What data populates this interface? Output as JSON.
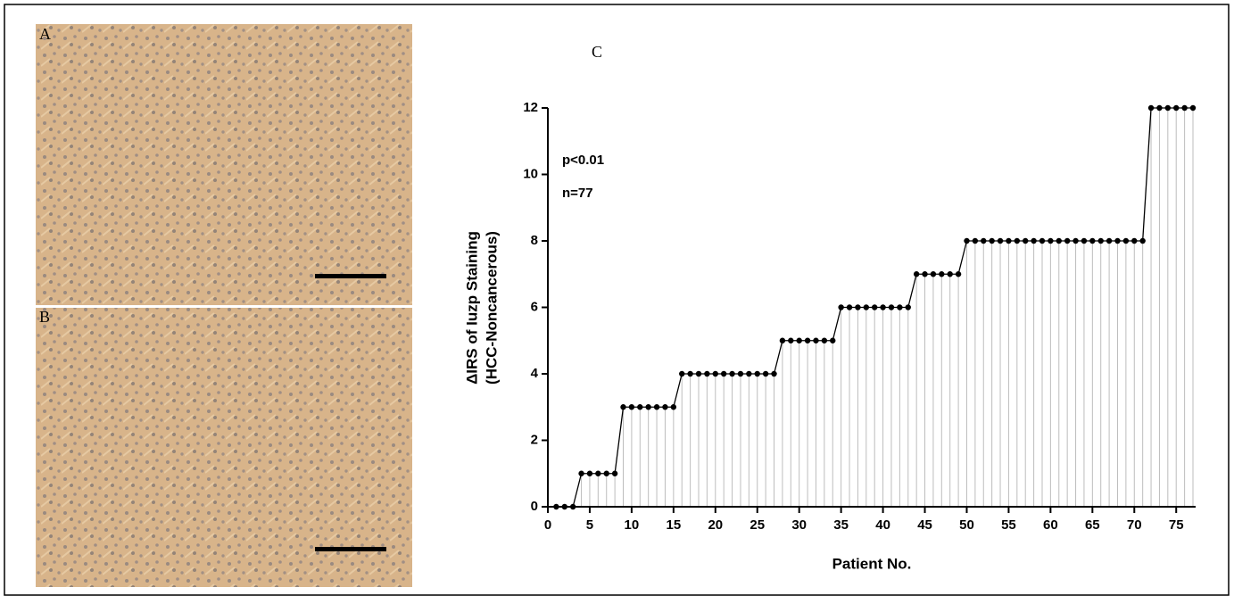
{
  "panels": {
    "a": "A",
    "b": "B"
  },
  "chart_data": {
    "type": "line",
    "title": "C",
    "x_label": "Patient No.",
    "y_label": [
      "ΔIRS of Iuzp Staining",
      "(HCC-Noncancerous)"
    ],
    "annotations": [
      "p<0.01",
      "n=77"
    ],
    "x": [
      1,
      2,
      3,
      4,
      5,
      6,
      7,
      8,
      9,
      10,
      11,
      12,
      13,
      14,
      15,
      16,
      17,
      18,
      19,
      20,
      21,
      22,
      23,
      24,
      25,
      26,
      27,
      28,
      29,
      30,
      31,
      32,
      33,
      34,
      35,
      36,
      37,
      38,
      39,
      40,
      41,
      42,
      43,
      44,
      45,
      46,
      47,
      48,
      49,
      50,
      51,
      52,
      53,
      54,
      55,
      56,
      57,
      58,
      59,
      60,
      61,
      62,
      63,
      64,
      65,
      66,
      67,
      68,
      69,
      70,
      71,
      72,
      73,
      74,
      75,
      76,
      77
    ],
    "values": [
      0,
      0,
      0,
      1,
      1,
      1,
      1,
      1,
      3,
      3,
      3,
      3,
      3,
      3,
      3,
      4,
      4,
      4,
      4,
      4,
      4,
      4,
      4,
      4,
      4,
      4,
      4,
      5,
      5,
      5,
      5,
      5,
      5,
      5,
      6,
      6,
      6,
      6,
      6,
      6,
      6,
      6,
      6,
      7,
      7,
      7,
      7,
      7,
      7,
      8,
      8,
      8,
      8,
      8,
      8,
      8,
      8,
      8,
      8,
      8,
      8,
      8,
      8,
      8,
      8,
      8,
      8,
      8,
      8,
      8,
      8,
      12,
      12,
      12,
      12,
      12,
      12
    ],
    "color": "#000000",
    "drop_color": "#bdbdbd",
    "xlim": [
      0,
      77
    ],
    "ylim": [
      0,
      12
    ],
    "xticks": [
      0,
      5,
      10,
      15,
      20,
      25,
      30,
      35,
      40,
      45,
      50,
      55,
      60,
      65,
      70,
      75
    ],
    "yticks": [
      0,
      2,
      4,
      6,
      8,
      10,
      12
    ]
  }
}
